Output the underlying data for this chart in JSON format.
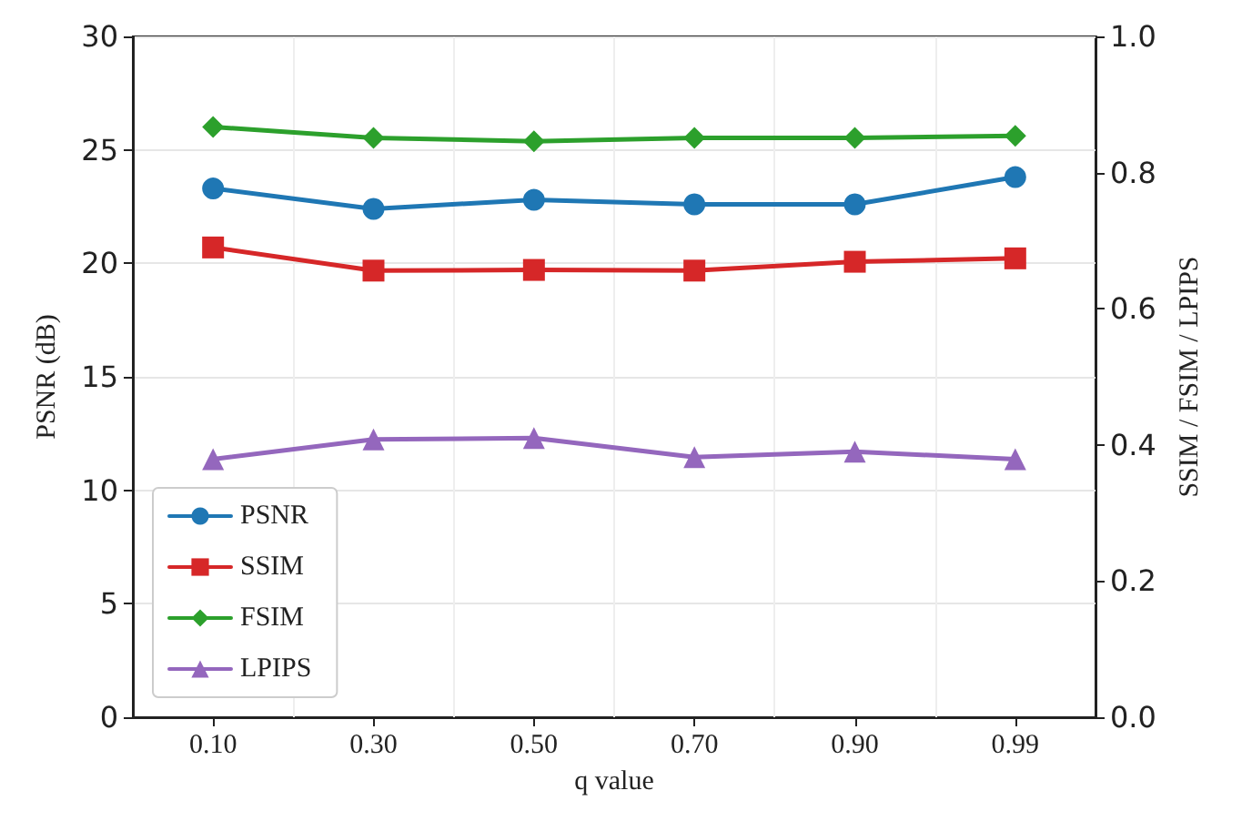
{
  "chart_data": {
    "type": "line",
    "xlabel": "q value",
    "ylabel": "PSNR (dB)",
    "y2label": "SSIM / FSIM / LPIPS",
    "categories": [
      "0.10",
      "0.30",
      "0.50",
      "0.70",
      "0.90",
      "0.99"
    ],
    "series": [
      {
        "name": "PSNR",
        "color": "#1f77b4",
        "marker": "circle",
        "values": [
          23.3,
          22.4,
          22.8,
          22.6,
          22.6,
          23.8
        ]
      },
      {
        "name": "SSIM",
        "color": "#d62728",
        "marker": "square",
        "axis": "y2",
        "values": [
          0.69,
          0.656,
          0.657,
          0.656,
          0.669,
          0.674
        ]
      },
      {
        "name": "FSIM",
        "color": "#2ca02c",
        "marker": "diamond",
        "axis": "y2",
        "values": [
          0.867,
          0.851,
          0.846,
          0.851,
          0.851,
          0.854
        ]
      },
      {
        "name": "LPIPS",
        "color": "#9467bd",
        "marker": "triangle",
        "axis": "y2",
        "values": [
          0.379,
          0.408,
          0.41,
          0.382,
          0.39,
          0.379
        ]
      }
    ],
    "ylim": [
      0,
      30
    ],
    "yticks": [
      0,
      5,
      10,
      15,
      20,
      25,
      30
    ],
    "y2lim": [
      0,
      1
    ],
    "y2ticks": [
      {
        "value": 0,
        "label": "0.0"
      },
      0.2,
      0.4,
      0.6,
      0.8,
      {
        "value": 1,
        "label": "1.0"
      }
    ],
    "grid": true,
    "legend": "bottom left",
    "line_style": "solid"
  }
}
